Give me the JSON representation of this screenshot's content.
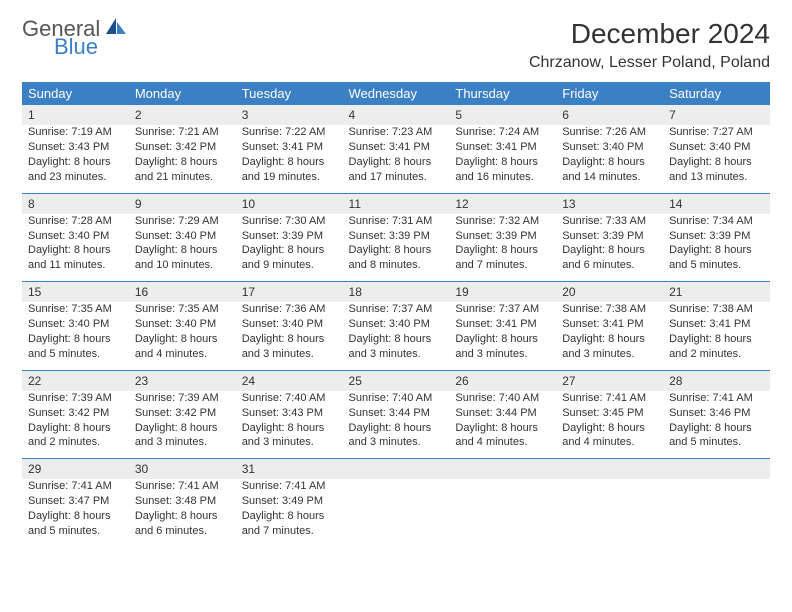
{
  "brand": {
    "general": "General",
    "blue": "Blue"
  },
  "title": "December 2024",
  "location": "Chrzanow, Lesser Poland, Poland",
  "colors": {
    "header_bg": "#3b7fc4",
    "header_text": "#ffffff",
    "daynum_bg": "#ededed",
    "text": "#333333",
    "logo_gray": "#555555",
    "logo_blue": "#3b7fc4"
  },
  "typography": {
    "title_fontsize": 28,
    "location_fontsize": 16,
    "dayheader_fontsize": 13,
    "cell_fontsize": 11
  },
  "day_headers": [
    "Sunday",
    "Monday",
    "Tuesday",
    "Wednesday",
    "Thursday",
    "Friday",
    "Saturday"
  ],
  "weeks": [
    [
      {
        "num": "1",
        "sunrise": "Sunrise: 7:19 AM",
        "sunset": "Sunset: 3:43 PM",
        "daylight": "Daylight: 8 hours and 23 minutes."
      },
      {
        "num": "2",
        "sunrise": "Sunrise: 7:21 AM",
        "sunset": "Sunset: 3:42 PM",
        "daylight": "Daylight: 8 hours and 21 minutes."
      },
      {
        "num": "3",
        "sunrise": "Sunrise: 7:22 AM",
        "sunset": "Sunset: 3:41 PM",
        "daylight": "Daylight: 8 hours and 19 minutes."
      },
      {
        "num": "4",
        "sunrise": "Sunrise: 7:23 AM",
        "sunset": "Sunset: 3:41 PM",
        "daylight": "Daylight: 8 hours and 17 minutes."
      },
      {
        "num": "5",
        "sunrise": "Sunrise: 7:24 AM",
        "sunset": "Sunset: 3:41 PM",
        "daylight": "Daylight: 8 hours and 16 minutes."
      },
      {
        "num": "6",
        "sunrise": "Sunrise: 7:26 AM",
        "sunset": "Sunset: 3:40 PM",
        "daylight": "Daylight: 8 hours and 14 minutes."
      },
      {
        "num": "7",
        "sunrise": "Sunrise: 7:27 AM",
        "sunset": "Sunset: 3:40 PM",
        "daylight": "Daylight: 8 hours and 13 minutes."
      }
    ],
    [
      {
        "num": "8",
        "sunrise": "Sunrise: 7:28 AM",
        "sunset": "Sunset: 3:40 PM",
        "daylight": "Daylight: 8 hours and 11 minutes."
      },
      {
        "num": "9",
        "sunrise": "Sunrise: 7:29 AM",
        "sunset": "Sunset: 3:40 PM",
        "daylight": "Daylight: 8 hours and 10 minutes."
      },
      {
        "num": "10",
        "sunrise": "Sunrise: 7:30 AM",
        "sunset": "Sunset: 3:39 PM",
        "daylight": "Daylight: 8 hours and 9 minutes."
      },
      {
        "num": "11",
        "sunrise": "Sunrise: 7:31 AM",
        "sunset": "Sunset: 3:39 PM",
        "daylight": "Daylight: 8 hours and 8 minutes."
      },
      {
        "num": "12",
        "sunrise": "Sunrise: 7:32 AM",
        "sunset": "Sunset: 3:39 PM",
        "daylight": "Daylight: 8 hours and 7 minutes."
      },
      {
        "num": "13",
        "sunrise": "Sunrise: 7:33 AM",
        "sunset": "Sunset: 3:39 PM",
        "daylight": "Daylight: 8 hours and 6 minutes."
      },
      {
        "num": "14",
        "sunrise": "Sunrise: 7:34 AM",
        "sunset": "Sunset: 3:39 PM",
        "daylight": "Daylight: 8 hours and 5 minutes."
      }
    ],
    [
      {
        "num": "15",
        "sunrise": "Sunrise: 7:35 AM",
        "sunset": "Sunset: 3:40 PM",
        "daylight": "Daylight: 8 hours and 5 minutes."
      },
      {
        "num": "16",
        "sunrise": "Sunrise: 7:35 AM",
        "sunset": "Sunset: 3:40 PM",
        "daylight": "Daylight: 8 hours and 4 minutes."
      },
      {
        "num": "17",
        "sunrise": "Sunrise: 7:36 AM",
        "sunset": "Sunset: 3:40 PM",
        "daylight": "Daylight: 8 hours and 3 minutes."
      },
      {
        "num": "18",
        "sunrise": "Sunrise: 7:37 AM",
        "sunset": "Sunset: 3:40 PM",
        "daylight": "Daylight: 8 hours and 3 minutes."
      },
      {
        "num": "19",
        "sunrise": "Sunrise: 7:37 AM",
        "sunset": "Sunset: 3:41 PM",
        "daylight": "Daylight: 8 hours and 3 minutes."
      },
      {
        "num": "20",
        "sunrise": "Sunrise: 7:38 AM",
        "sunset": "Sunset: 3:41 PM",
        "daylight": "Daylight: 8 hours and 3 minutes."
      },
      {
        "num": "21",
        "sunrise": "Sunrise: 7:38 AM",
        "sunset": "Sunset: 3:41 PM",
        "daylight": "Daylight: 8 hours and 2 minutes."
      }
    ],
    [
      {
        "num": "22",
        "sunrise": "Sunrise: 7:39 AM",
        "sunset": "Sunset: 3:42 PM",
        "daylight": "Daylight: 8 hours and 2 minutes."
      },
      {
        "num": "23",
        "sunrise": "Sunrise: 7:39 AM",
        "sunset": "Sunset: 3:42 PM",
        "daylight": "Daylight: 8 hours and 3 minutes."
      },
      {
        "num": "24",
        "sunrise": "Sunrise: 7:40 AM",
        "sunset": "Sunset: 3:43 PM",
        "daylight": "Daylight: 8 hours and 3 minutes."
      },
      {
        "num": "25",
        "sunrise": "Sunrise: 7:40 AM",
        "sunset": "Sunset: 3:44 PM",
        "daylight": "Daylight: 8 hours and 3 minutes."
      },
      {
        "num": "26",
        "sunrise": "Sunrise: 7:40 AM",
        "sunset": "Sunset: 3:44 PM",
        "daylight": "Daylight: 8 hours and 4 minutes."
      },
      {
        "num": "27",
        "sunrise": "Sunrise: 7:41 AM",
        "sunset": "Sunset: 3:45 PM",
        "daylight": "Daylight: 8 hours and 4 minutes."
      },
      {
        "num": "28",
        "sunrise": "Sunrise: 7:41 AM",
        "sunset": "Sunset: 3:46 PM",
        "daylight": "Daylight: 8 hours and 5 minutes."
      }
    ],
    [
      {
        "num": "29",
        "sunrise": "Sunrise: 7:41 AM",
        "sunset": "Sunset: 3:47 PM",
        "daylight": "Daylight: 8 hours and 5 minutes."
      },
      {
        "num": "30",
        "sunrise": "Sunrise: 7:41 AM",
        "sunset": "Sunset: 3:48 PM",
        "daylight": "Daylight: 8 hours and 6 minutes."
      },
      {
        "num": "31",
        "sunrise": "Sunrise: 7:41 AM",
        "sunset": "Sunset: 3:49 PM",
        "daylight": "Daylight: 8 hours and 7 minutes."
      },
      null,
      null,
      null,
      null
    ]
  ]
}
